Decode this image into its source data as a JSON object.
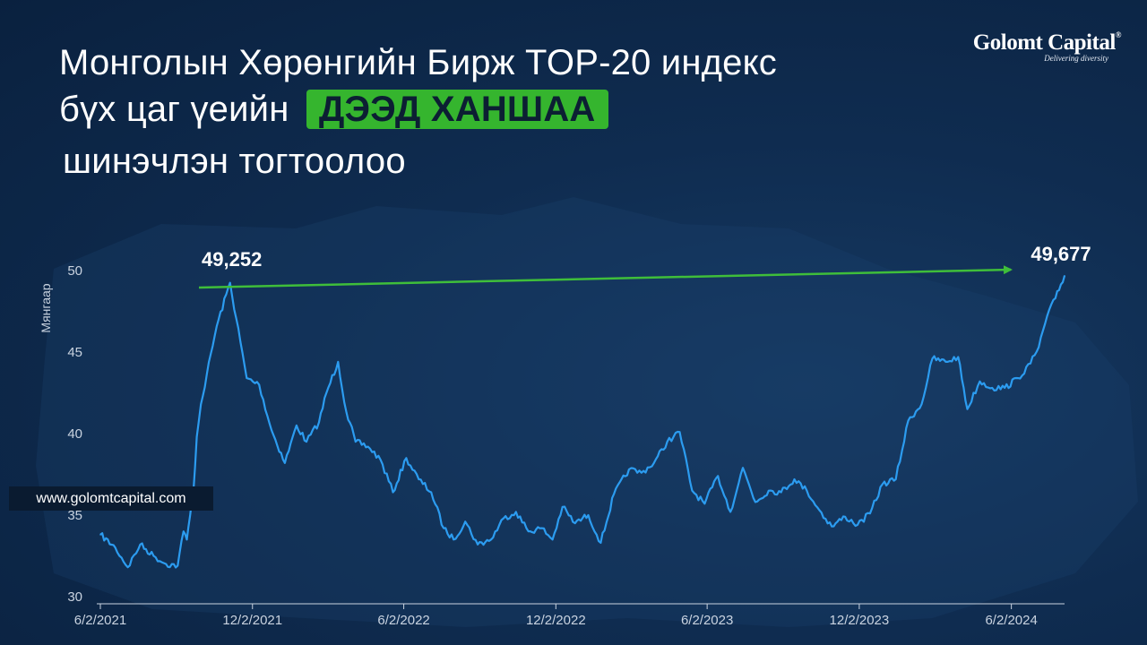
{
  "title": {
    "line1": "Монголын Хөрөнгийн Бирж TOP-20 индекс",
    "line2_prefix": "бүх цаг үеийн",
    "line2_highlight": "ДЭЭД ХАНШАА",
    "line3": "шинэчлэн тогтоолоо"
  },
  "logo": {
    "name": "Golomt Capital",
    "registered": "®",
    "tagline": "Delivering diversity"
  },
  "website": "www.golomtcapital.com",
  "colors": {
    "line": "#2c9cf0",
    "arrow": "#3fbe3a",
    "highlight": "#35b52e",
    "background": "#0f2c50"
  },
  "chart_data": {
    "type": "line",
    "ylabel": "Мянгаар",
    "ylim": [
      30,
      50
    ],
    "yticks": [
      30,
      35,
      40,
      45,
      50
    ],
    "xticks": [
      "6/2/2021",
      "12/2/2021",
      "6/2/2022",
      "12/2/2022",
      "6/2/2023",
      "12/2/2023",
      "6/2/2024"
    ],
    "x_range": [
      "2021-06-02",
      "2024-08-05"
    ],
    "x": [
      "2021-06-02",
      "2021-06-20",
      "2021-07-05",
      "2021-07-20",
      "2021-08-05",
      "2021-08-20",
      "2021-09-03",
      "2021-09-10",
      "2021-09-14",
      "2021-09-18",
      "2021-09-22",
      "2021-09-26",
      "2021-10-01",
      "2021-10-08",
      "2021-10-20",
      "2021-11-05",
      "2021-11-25",
      "2021-12-10",
      "2021-12-25",
      "2022-01-10",
      "2022-01-24",
      "2022-02-05",
      "2022-02-20",
      "2022-03-01",
      "2022-03-15",
      "2022-03-25",
      "2022-04-05",
      "2022-04-20",
      "2022-05-05",
      "2022-05-20",
      "2022-06-05",
      "2022-06-20",
      "2022-07-05",
      "2022-07-20",
      "2022-08-01",
      "2022-08-15",
      "2022-08-30",
      "2022-09-15",
      "2022-09-30",
      "2022-10-15",
      "2022-10-30",
      "2022-11-15",
      "2022-11-28",
      "2022-12-10",
      "2022-12-25",
      "2023-01-10",
      "2023-01-25",
      "2023-02-10",
      "2023-02-28",
      "2023-03-15",
      "2023-03-30",
      "2023-04-15",
      "2023-04-30",
      "2023-05-15",
      "2023-05-30",
      "2023-06-15",
      "2023-06-30",
      "2023-07-15",
      "2023-07-30",
      "2023-08-15",
      "2023-08-30",
      "2023-09-15",
      "2023-09-30",
      "2023-10-15",
      "2023-10-30",
      "2023-11-15",
      "2023-11-30",
      "2023-12-15",
      "2023-12-30",
      "2024-01-15",
      "2024-01-30",
      "2024-02-15",
      "2024-02-28",
      "2024-03-15",
      "2024-03-30",
      "2024-04-10",
      "2024-04-25",
      "2024-05-10",
      "2024-05-25",
      "2024-06-10",
      "2024-06-25",
      "2024-07-05",
      "2024-07-15",
      "2024-07-25",
      "2024-08-05"
    ],
    "series": [
      {
        "values": [
          33.8,
          33.0,
          31.8,
          33.2,
          32.5,
          32.0,
          31.9,
          34.0,
          33.5,
          35.0,
          36.5,
          39.8,
          41.8,
          43.6,
          46.6,
          49.25,
          43.4,
          43.0,
          40.2,
          38.2,
          40.5,
          39.5,
          40.7,
          42.5,
          44.4,
          41.3,
          39.5,
          39.2,
          38.4,
          36.4,
          38.5,
          37.2,
          36.4,
          34.2,
          33.5,
          34.6,
          33.2,
          33.5,
          34.8,
          35.2,
          34.0,
          34.2,
          33.5,
          35.5,
          34.5,
          35.0,
          33.3,
          36.3,
          37.8,
          37.6,
          38.2,
          39.5,
          40.1,
          36.5,
          35.7,
          37.4,
          35.2,
          37.9,
          35.8,
          36.5,
          36.4,
          37.2,
          36.5,
          35.3,
          34.3,
          34.9,
          34.4,
          35.1,
          36.9,
          37.2,
          40.8,
          41.8,
          44.6,
          44.4,
          44.7,
          41.5,
          43.2,
          42.8,
          42.8,
          43.4,
          44.3,
          45.3,
          47.2,
          48.3,
          49.68
        ]
      }
    ],
    "annotations": [
      {
        "text": "49,252",
        "x": "2021-11-05",
        "y": 49.25
      },
      {
        "text": "49,677",
        "x": "2024-08-05",
        "y": 49.68
      }
    ]
  }
}
